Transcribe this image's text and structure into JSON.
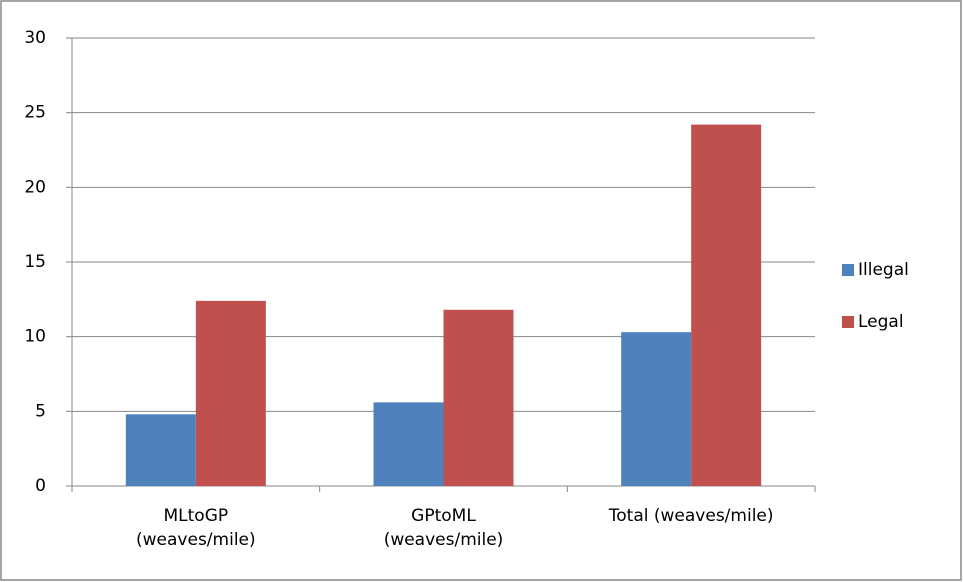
{
  "chart_data": {
    "type": "bar",
    "categories": [
      "MLtoGP\n(weaves/mile)",
      "GPtoML\n(weaves/mile)",
      "Total (weaves/mile)"
    ],
    "series": [
      {
        "name": "Illegal",
        "color": "#4f81bd",
        "values": [
          4.8,
          5.6,
          10.3
        ]
      },
      {
        "name": "Legal",
        "color": "#c0504d",
        "values": [
          12.4,
          11.8,
          24.2
        ]
      }
    ],
    "ylim": [
      0,
      30
    ],
    "yticks": [
      0,
      5,
      10,
      15,
      20,
      25,
      30
    ],
    "grid": true,
    "legend": "right"
  }
}
